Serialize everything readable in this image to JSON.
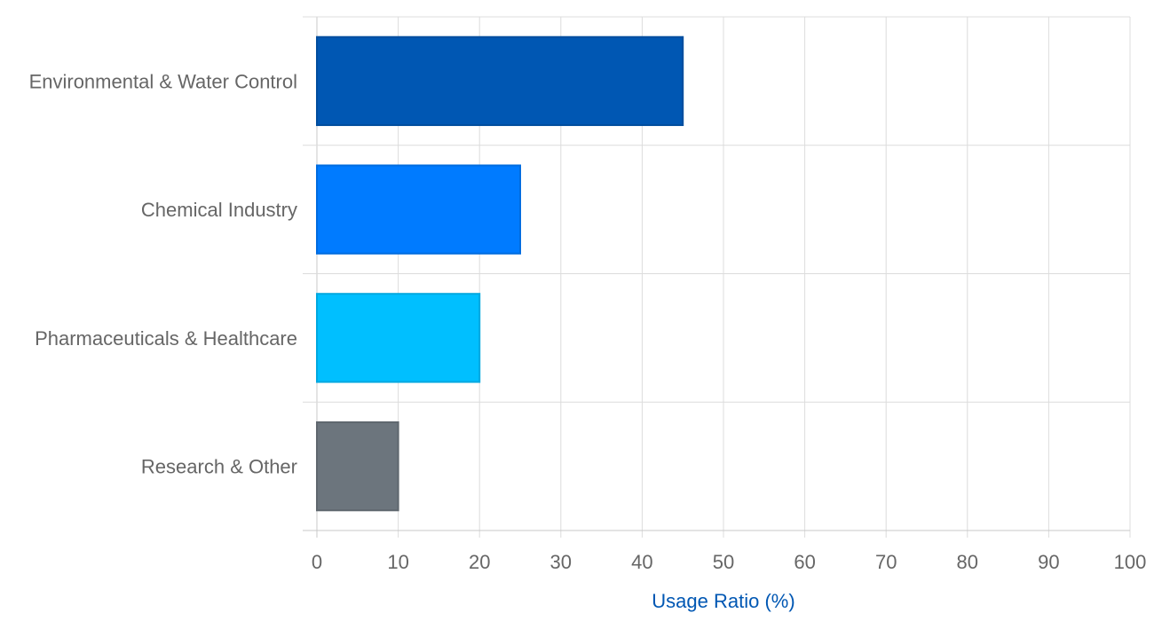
{
  "chart_data": {
    "type": "bar",
    "orientation": "horizontal",
    "categories": [
      "Environmental & Water Control",
      "Chemical Industry",
      "Pharmaceuticals & Healthcare",
      "Research & Other"
    ],
    "values": [
      45,
      25,
      20,
      10
    ],
    "colors": [
      "#0057b3",
      "#007bff",
      "#00bfff",
      "#6c757d"
    ],
    "xlabel": "Usage Ratio (%)",
    "ylabel": "",
    "xlim": [
      0,
      100
    ],
    "x_ticks": [
      "0",
      "10",
      "20",
      "30",
      "40",
      "50",
      "60",
      "70",
      "80",
      "90",
      "100"
    ],
    "grid": true,
    "legend": "none",
    "axis_title_color": "#0057b3"
  }
}
